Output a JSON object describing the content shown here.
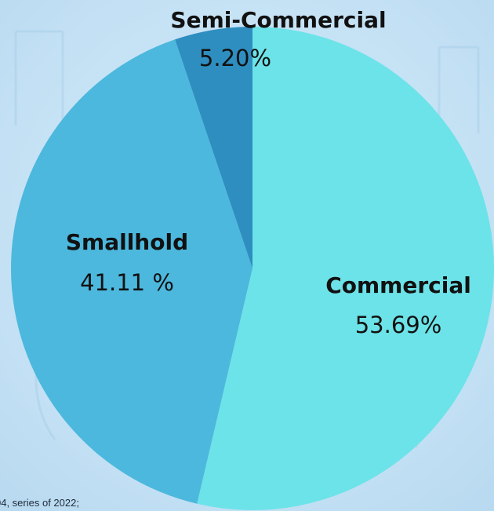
{
  "chart_data": {
    "type": "pie",
    "title": "",
    "slices": [
      {
        "label": "Commercial",
        "value_text": "53.69%",
        "value": 53.69,
        "color": "#6ce3e8"
      },
      {
        "label": "Smallhold",
        "value_text": "41.11 %",
        "value": 41.11,
        "color": "#4cb8dd"
      },
      {
        "label": "Semi-Commercial",
        "value_text": "5.20%",
        "value": 5.2,
        "color": "#2e8ec0"
      }
    ]
  },
  "footnote": "04, series of 2022;",
  "colors": {
    "background": "#c9e4f6"
  }
}
